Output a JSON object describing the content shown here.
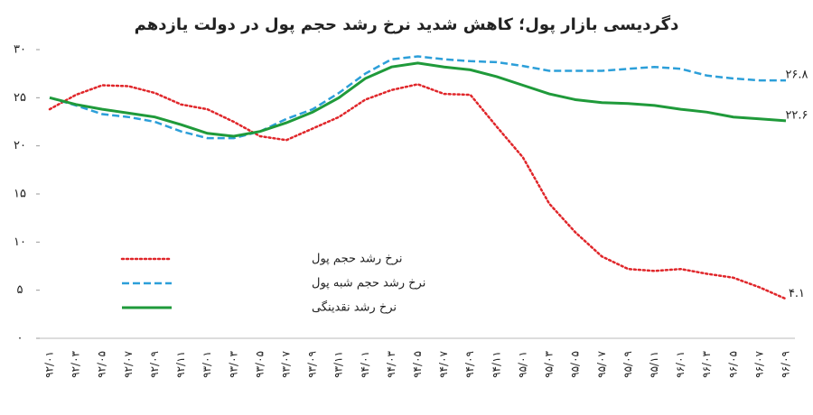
{
  "chart_data": {
    "type": "line",
    "title": "دگردیسی بازار پول؛ کاهش شدید نرخ رشد حجم پول در دولت یازدهم",
    "categories": [
      "۹۲/۰۱",
      "۹۲/۰۳",
      "۹۲/۰۵",
      "۹۲/۰۷",
      "۹۲/۰۹",
      "۹۲/۱۱",
      "۹۳/۰۱",
      "۹۳/۰۳",
      "۹۳/۰۵",
      "۹۳/۰۷",
      "۹۳/۰۹",
      "۹۳/۱۱",
      "۹۴/۰۱",
      "۹۴/۰۳",
      "۹۴/۰۵",
      "۹۴/۰۷",
      "۹۴/۰۹",
      "۹۴/۱۱",
      "۹۵/۰۱",
      "۹۵/۰۳",
      "۹۵/۰۵",
      "۹۵/۰۷",
      "۹۵/۰۹",
      "۹۵/۱۱",
      "۹۶/۰۱",
      "۹۶/۰۳",
      "۹۶/۰۵",
      "۹۶/۰۷",
      "۹۶/۰۹"
    ],
    "series": [
      {
        "name": "نرخ رشد حجم پول",
        "color": "#e0262a",
        "dash": "dotted",
        "end_label": "۴.۱",
        "values": [
          23.8,
          25.3,
          26.3,
          26.2,
          25.5,
          24.3,
          23.8,
          22.5,
          21,
          20.6,
          21.8,
          23,
          24.8,
          25.8,
          26.4,
          25.4,
          25.3,
          22,
          18.8,
          14,
          11,
          8.5,
          7.2,
          7,
          7.2,
          6.7,
          6.3,
          5.3,
          4.1
        ]
      },
      {
        "name": "نرخ رشد حجم شبه پول",
        "color": "#2c9fd9",
        "dash": "dashed",
        "end_label": "۲۶.۸",
        "values": [
          25,
          24.2,
          23.3,
          23,
          22.5,
          21.5,
          20.8,
          20.8,
          21.5,
          22.8,
          23.8,
          25.5,
          27.5,
          29,
          29.3,
          29,
          28.8,
          28.7,
          28.3,
          27.8,
          27.8,
          27.8,
          28,
          28.2,
          28,
          27.3,
          27,
          26.8,
          26.8
        ]
      },
      {
        "name": "نرخ رشد نقدینگی",
        "color": "#1f9a3a",
        "dash": "solid",
        "end_label": "۲۲.۶",
        "values": [
          25,
          24.3,
          23.8,
          23.4,
          23,
          22.2,
          21.3,
          21,
          21.5,
          22.4,
          23.5,
          25,
          27,
          28.2,
          28.6,
          28.2,
          27.9,
          27.2,
          26.3,
          25.4,
          24.8,
          24.5,
          24.4,
          24.2,
          23.8,
          23.5,
          23,
          22.8,
          22.6
        ]
      }
    ],
    "ylim": [
      0,
      30
    ],
    "yticks": [
      {
        "value": 0,
        "label": "۰"
      },
      {
        "value": 5,
        "label": "۵"
      },
      {
        "value": 10,
        "label": "۱۰"
      },
      {
        "value": 15,
        "label": "۱۵"
      },
      {
        "value": 20,
        "label": "۲۰"
      },
      {
        "value": 25,
        "label": "۲۵"
      },
      {
        "value": 30,
        "label": "۳۰"
      }
    ],
    "grid": false,
    "legend": "left"
  }
}
